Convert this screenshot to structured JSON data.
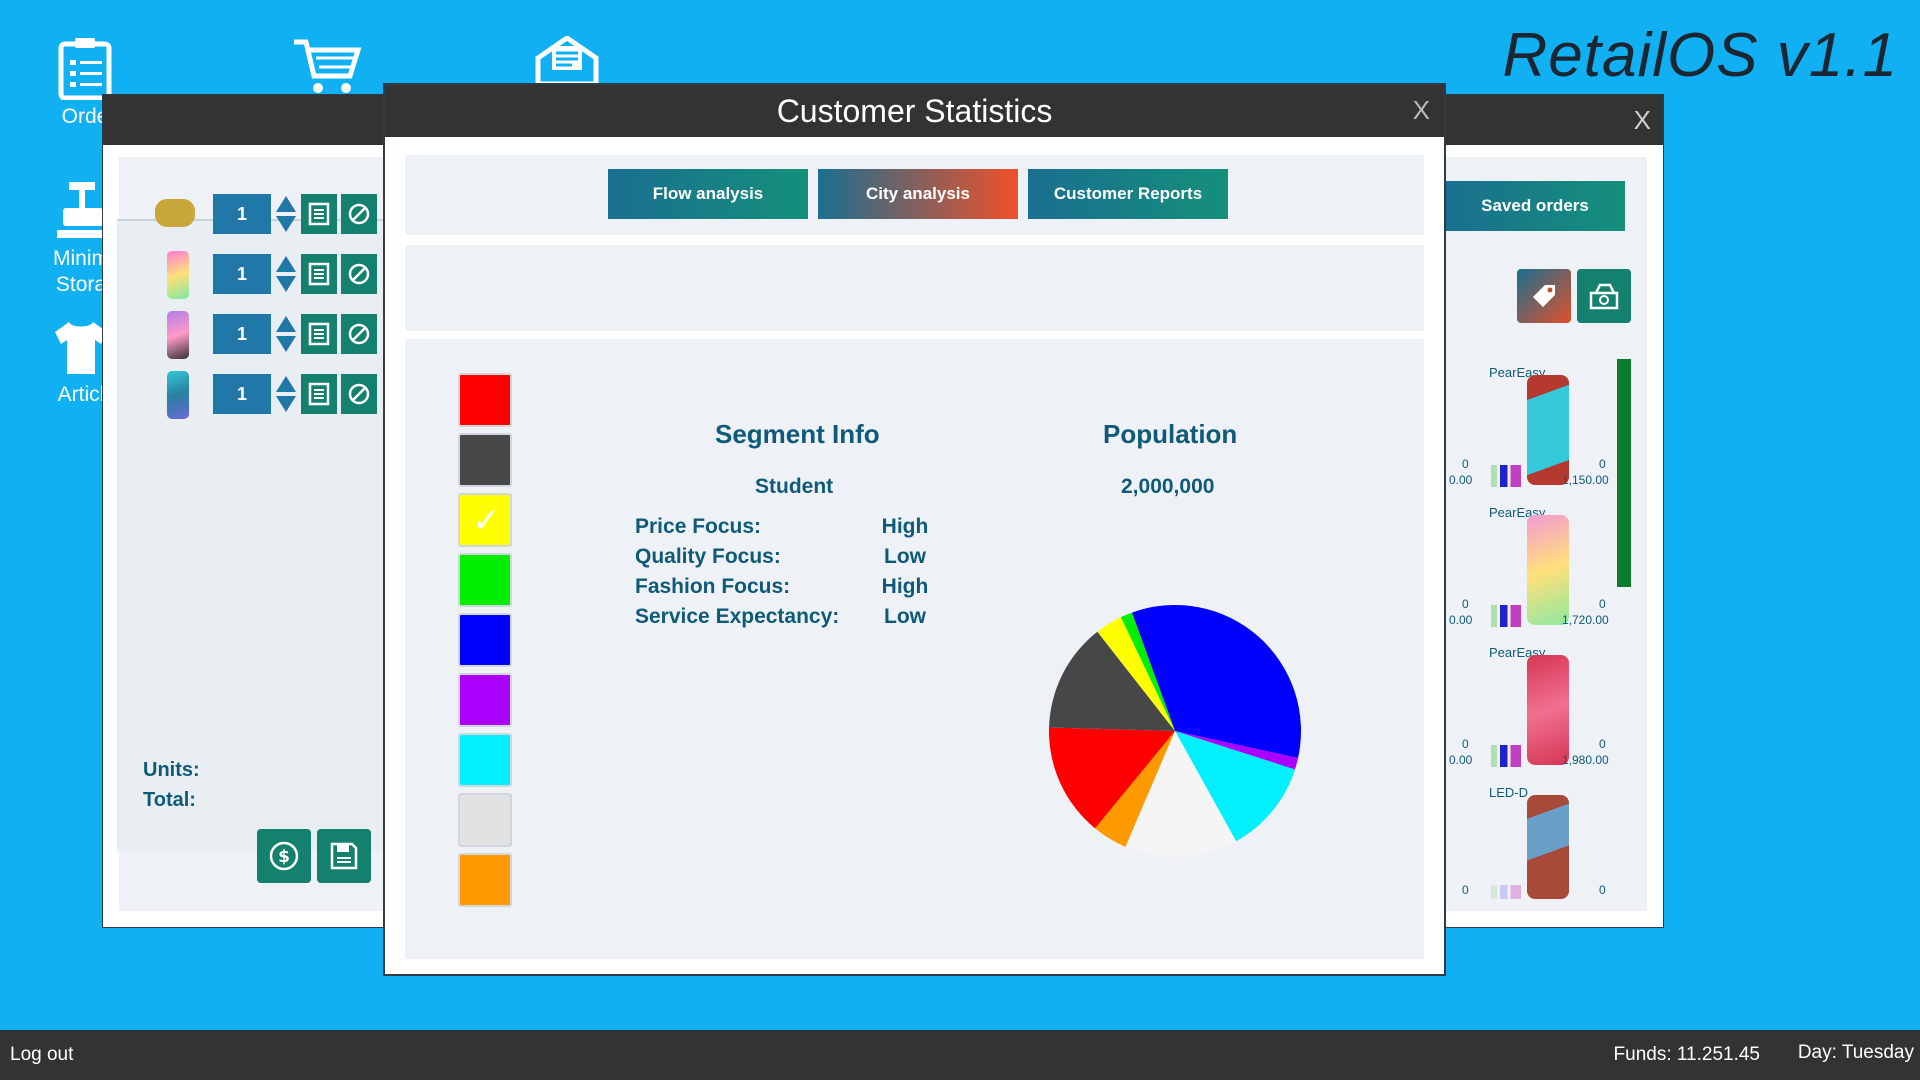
{
  "os_title": "RetailOS v1.1",
  "desktop": {
    "icons": [
      {
        "label": "Orde"
      },
      {
        "label": "Minim Stora"
      },
      {
        "label": "Articl"
      }
    ]
  },
  "order_window": {
    "rows": [
      {
        "qty": "1",
        "color": "#c9a63a"
      },
      {
        "qty": "1",
        "color": "#ff7ad6"
      },
      {
        "qty": "1",
        "color": "#b07ee8"
      },
      {
        "qty": "1",
        "color": "#33c9d8"
      }
    ],
    "units_label": "Units:",
    "total_label": "Total:"
  },
  "catalog_window": {
    "saved_orders_label": "Saved orders",
    "products": [
      {
        "name": "PearEasy",
        "left_num": "0",
        "left_sub": "0.00",
        "right_num": "0",
        "price": "1,150.00",
        "color": "#b5392e"
      },
      {
        "name": "PearEasy",
        "left_num": "0",
        "left_sub": "0.00",
        "right_num": "0",
        "price": "1,720.00",
        "color": "#f29ad4"
      },
      {
        "name": "PearEasy",
        "left_num": "0",
        "left_sub": "0.00",
        "right_num": "0",
        "price": "1,980.00",
        "color": "#d63555"
      },
      {
        "name": "LED-D",
        "left_num": "0",
        "right_num": "0",
        "color": "#a84a3a"
      }
    ]
  },
  "dialog": {
    "title": "Customer Statistics",
    "close_label": "X",
    "tabs": [
      {
        "label": "Flow analysis"
      },
      {
        "label": "City analysis"
      },
      {
        "label": "Customer Reports"
      }
    ],
    "swatches": [
      {
        "color": "#ff0000",
        "selected": false
      },
      {
        "color": "#474747",
        "selected": false
      },
      {
        "color": "#ffff00",
        "selected": true
      },
      {
        "color": "#00ee00",
        "selected": false
      },
      {
        "color": "#0000ff",
        "selected": false
      },
      {
        "color": "#aa00ff",
        "selected": false
      },
      {
        "color": "#00f0ff",
        "selected": false
      },
      {
        "color": "#e2e2e2",
        "selected": false
      },
      {
        "color": "#ff9900",
        "selected": false
      }
    ],
    "segment_info": {
      "heading": "Segment Info",
      "segment": "Student",
      "attributes": [
        {
          "label": "Price Focus:",
          "value": "High"
        },
        {
          "label": "Quality Focus:",
          "value": "Low"
        },
        {
          "label": "Fashion Focus:",
          "value": "High"
        },
        {
          "label": "Service Expectancy:",
          "value": "Low"
        }
      ]
    },
    "population": {
      "heading": "Population",
      "value": "2,000,000"
    }
  },
  "chart_data": {
    "type": "pie",
    "slices": [
      {
        "color": "#0000ff",
        "percent": 34
      },
      {
        "color": "#aa00ff",
        "percent": 1.5
      },
      {
        "color": "#00f0ff",
        "percent": 12
      },
      {
        "color": "#f5f5f5",
        "percent": 14.5
      },
      {
        "color": "#ff9900",
        "percent": 4.5
      },
      {
        "color": "#ff0000",
        "percent": 14.5
      },
      {
        "color": "#474747",
        "percent": 14
      },
      {
        "color": "#ffff00",
        "percent": 3.5
      },
      {
        "color": "#00ee00",
        "percent": 1.5
      }
    ]
  },
  "taskbar": {
    "logout": "Log out",
    "funds": "Funds: 11.251.45",
    "day": "Day: Tuesday"
  }
}
